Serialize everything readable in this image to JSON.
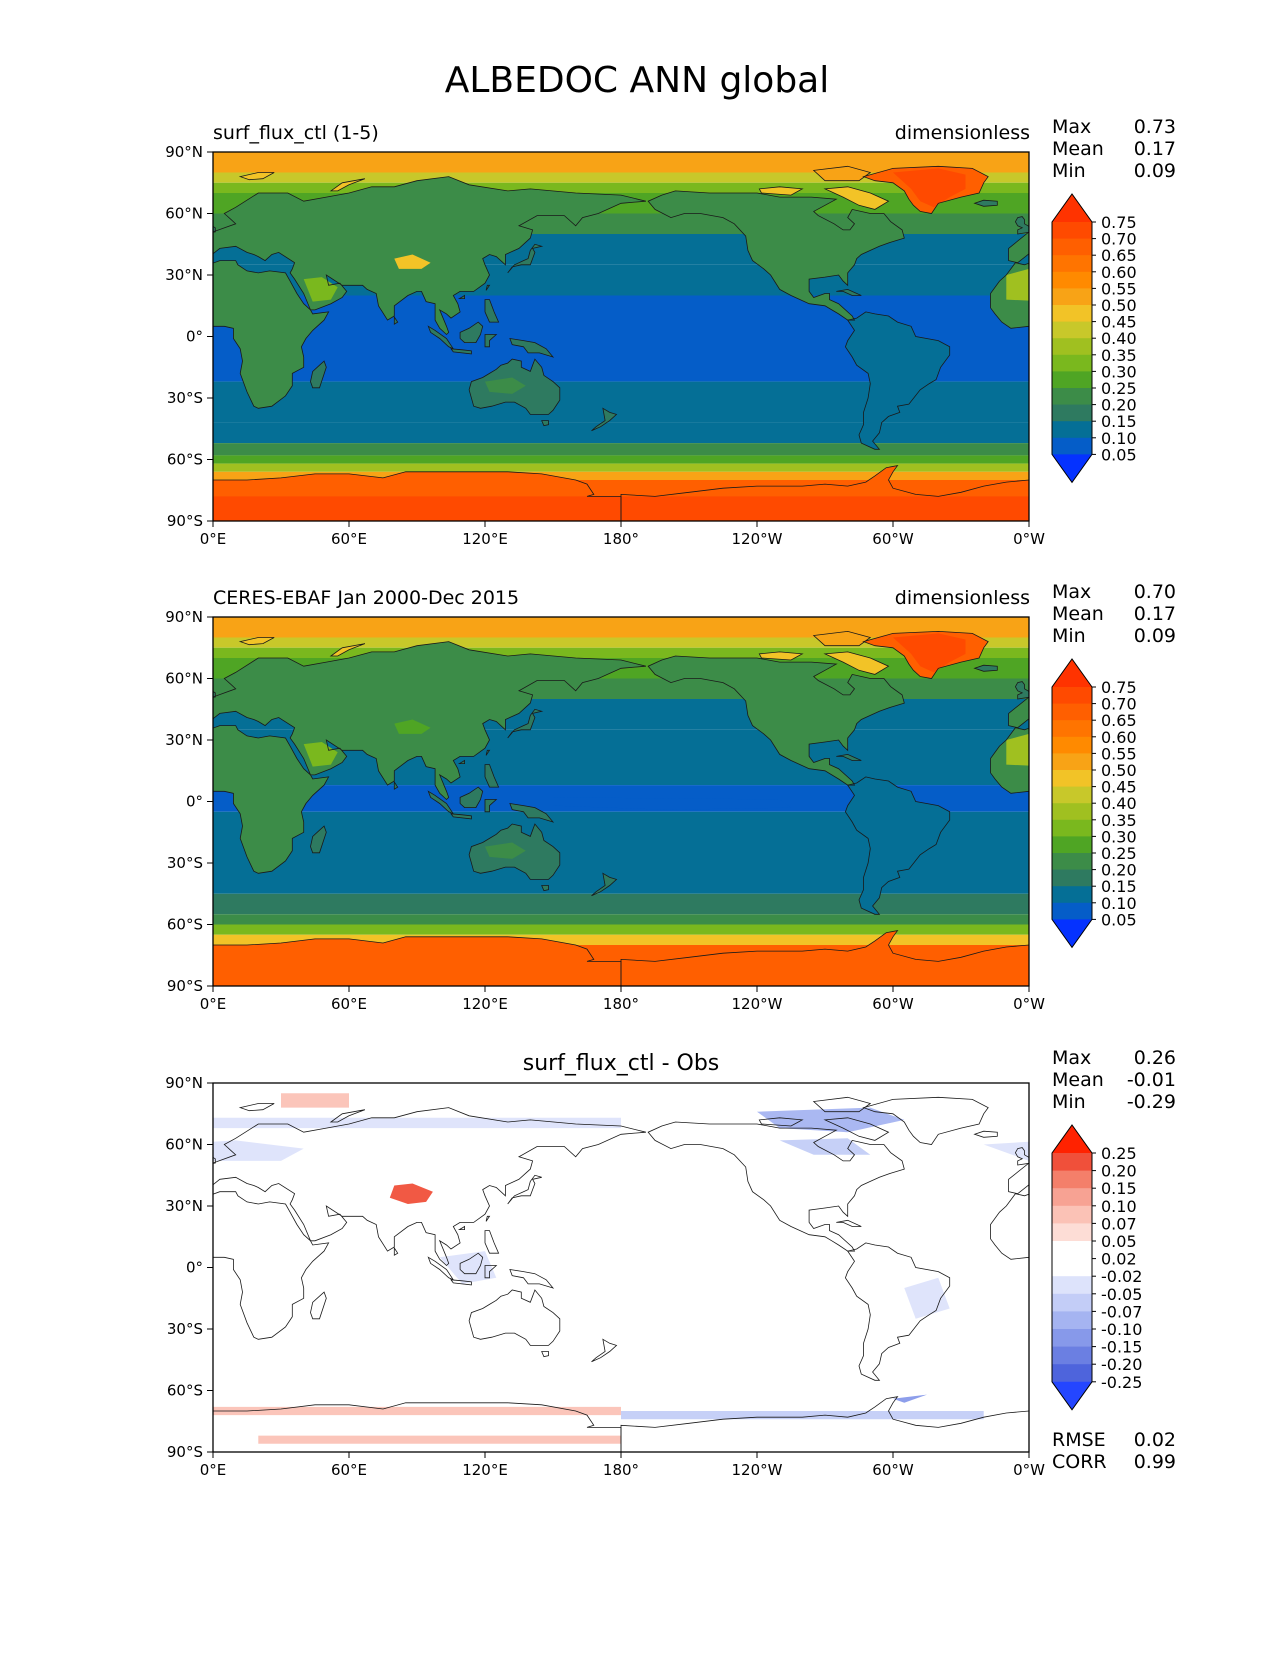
{
  "title": "ALBEDOC ANN global",
  "axes": {
    "lat_ticks": [
      "90°N",
      "60°N",
      "30°N",
      "0°",
      "30°S",
      "60°S",
      "90°S"
    ],
    "lon_ticks": [
      "0°E",
      "60°E",
      "120°E",
      "180°",
      "120°W",
      "60°W",
      "0°W"
    ]
  },
  "panels": [
    {
      "left_label": "surf_flux_ctl (1-5)",
      "right_label": "dimensionless",
      "center_label": "",
      "stats": [
        {
          "label": "Max",
          "value": "0.73"
        },
        {
          "label": "Mean",
          "value": "0.17"
        },
        {
          "label": "Min",
          "value": "0.09"
        }
      ],
      "bottom_stats": [],
      "colorbar_levels": [
        "0.75",
        "0.70",
        "0.65",
        "0.60",
        "0.55",
        "0.50",
        "0.45",
        "0.40",
        "0.35",
        "0.30",
        "0.25",
        "0.20",
        "0.15",
        "0.10",
        "0.05"
      ]
    },
    {
      "left_label": "CERES-EBAF Jan 2000-Dec 2015",
      "right_label": "dimensionless",
      "center_label": "",
      "stats": [
        {
          "label": "Max",
          "value": "0.70"
        },
        {
          "label": "Mean",
          "value": "0.17"
        },
        {
          "label": "Min",
          "value": "0.09"
        }
      ],
      "bottom_stats": [],
      "colorbar_levels": [
        "0.75",
        "0.70",
        "0.65",
        "0.60",
        "0.55",
        "0.50",
        "0.45",
        "0.40",
        "0.35",
        "0.30",
        "0.25",
        "0.20",
        "0.15",
        "0.10",
        "0.05"
      ]
    },
    {
      "left_label": "",
      "right_label": "",
      "center_label": "surf_flux_ctl - Obs",
      "stats": [
        {
          "label": "Max",
          "value": "0.26"
        },
        {
          "label": "Mean",
          "value": "-0.01"
        },
        {
          "label": "Min",
          "value": "-0.29"
        }
      ],
      "bottom_stats": [
        {
          "label": "RMSE",
          "value": "0.02"
        },
        {
          "label": "CORR",
          "value": "0.99"
        }
      ],
      "colorbar_levels": [
        "0.25",
        "0.20",
        "0.15",
        "0.10",
        "0.07",
        "0.05",
        "0.02",
        "-0.02",
        "-0.05",
        "-0.07",
        "-0.10",
        "-0.15",
        "-0.20",
        "-0.25"
      ]
    }
  ],
  "colors": {
    "seq_palette": [
      "#ff3300",
      "#ff4a00",
      "#ff5f00",
      "#ff7400",
      "#ff8a00",
      "#f8a316",
      "#f2c327",
      "#c8c82a",
      "#a0c020",
      "#7ab81e",
      "#4fa524",
      "#3c8c48",
      "#2e7a60",
      "#056f96",
      "#055dc8",
      "#0532ff"
    ],
    "div_palette": [
      "#ff2200",
      "#f0503a",
      "#f47f6a",
      "#f7a293",
      "#fbc2b6",
      "#fdddd6",
      "#ffffff",
      "#ffffff",
      "#dde3fb",
      "#c3cdf7",
      "#a5b4f1",
      "#8799ea",
      "#6b7fe2",
      "#4e64dc",
      "#2446ff"
    ]
  }
}
